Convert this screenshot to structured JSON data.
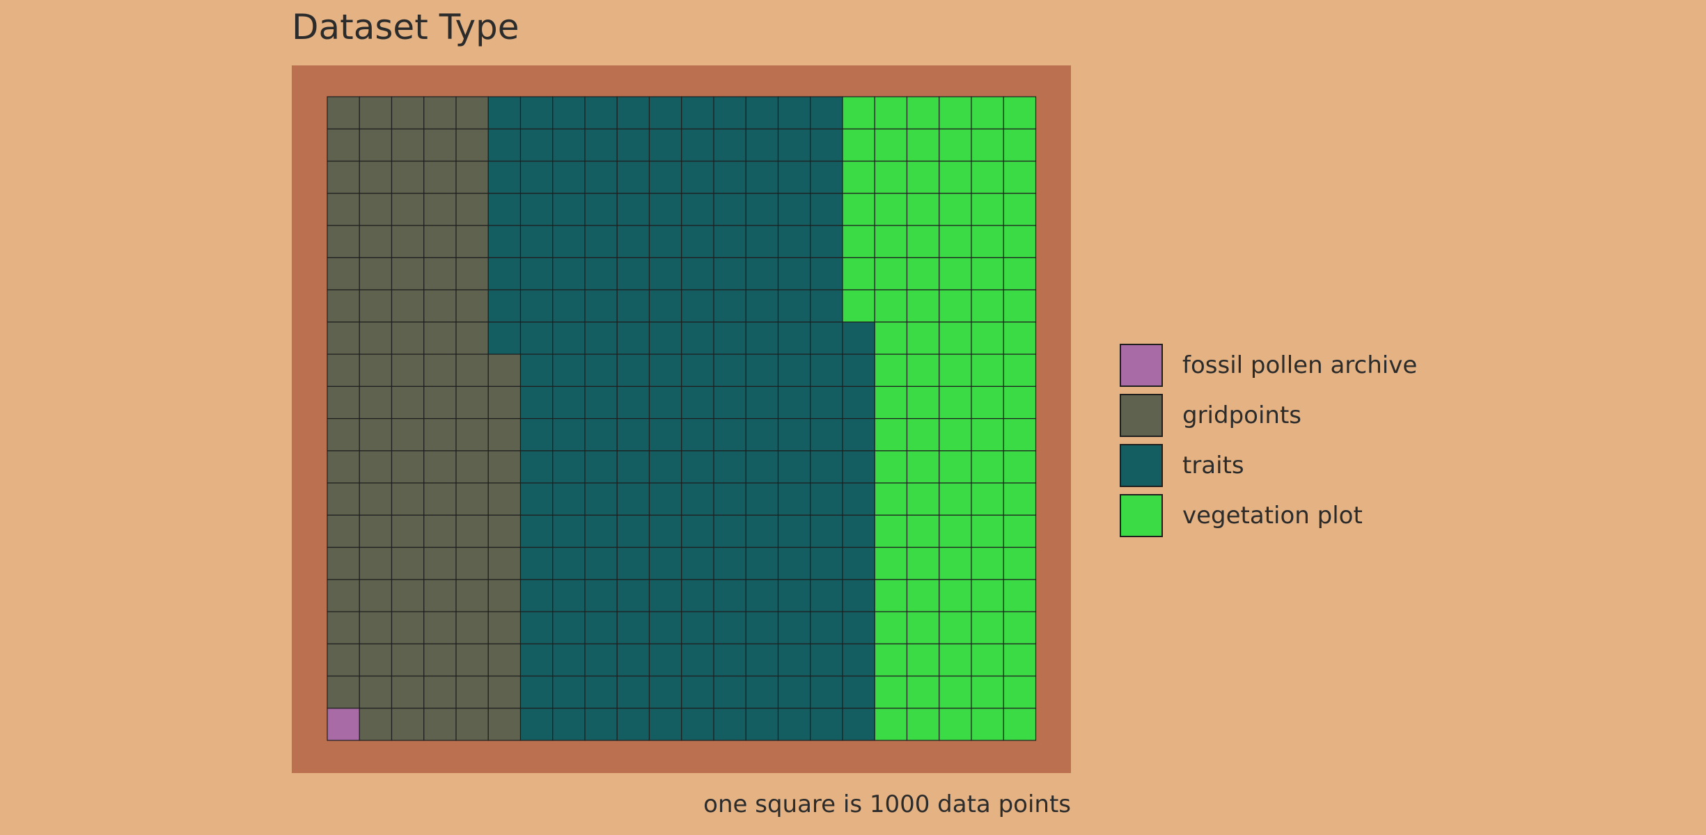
{
  "chart_data": {
    "type": "waffle",
    "title": "Dataset Type",
    "caption": "one square is 1000 data points",
    "unit_per_square": 1000,
    "legend_position": "right",
    "categories": [
      "fossil pollen archive",
      "gridpoints",
      "traits",
      "vegetation plot"
    ],
    "values": [
      1,
      111,
      221,
      107
    ],
    "colors": [
      "#A86BA6",
      "#5E624E",
      "#145E62",
      "#3BDB45"
    ]
  },
  "colors": {
    "background": "#E5B383",
    "panel": "#BB7050",
    "cell_border": "#1e1e1e"
  }
}
